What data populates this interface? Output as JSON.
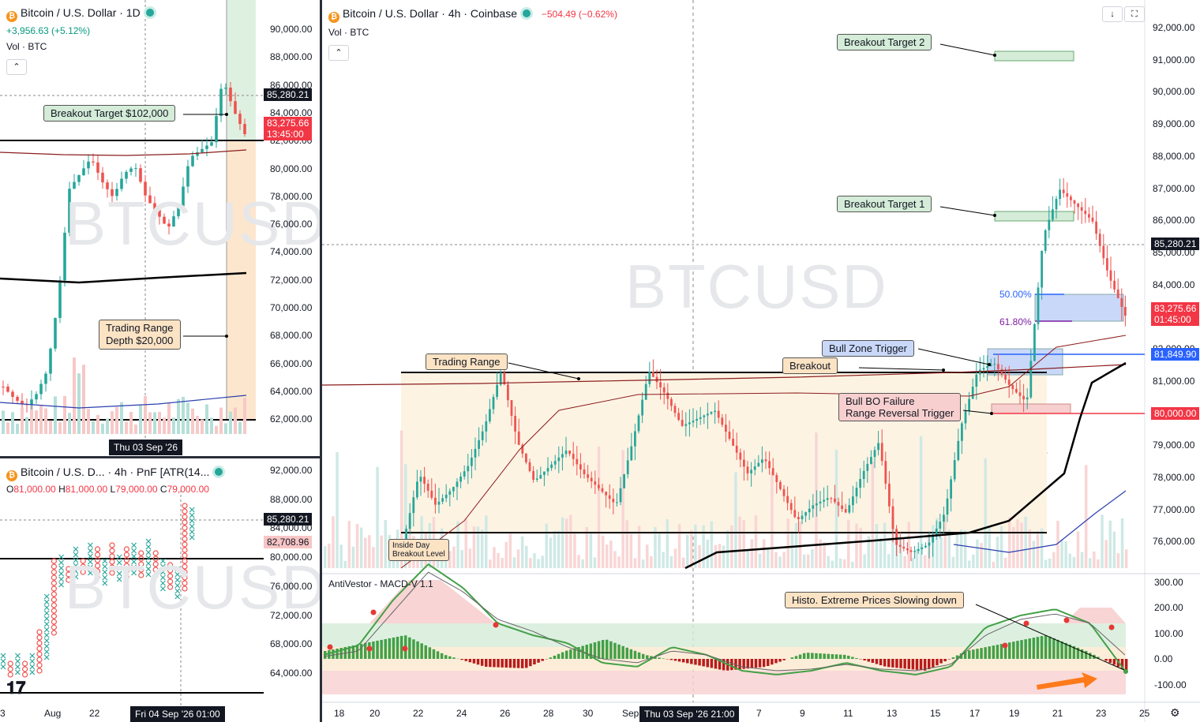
{
  "panel_daily": {
    "title": "Bitcoin / U.S. Dollar · 1D",
    "change": "+3,956.63 (+5.12%)",
    "volume_label": "Vol · BTC",
    "watermark": "BTCUSD",
    "price_axis": [
      "90,000.00",
      "88,000.00",
      "86,000.00",
      "84,000.00",
      "82,000.00",
      "80,000.00",
      "78,000.00",
      "76,000.00",
      "74,000.00",
      "72,000.00",
      "70,000.00",
      "68,000.00",
      "66,000.00",
      "64,000.00",
      "62,000.00"
    ],
    "last_price": "85,280.21",
    "current_price": "83,275.66",
    "countdown": "13:45:00",
    "crosshair_date": "Thu 03 Sep '26",
    "callout_target": "Breakout Target $102,000",
    "callout_range_line1": "Trading Range",
    "callout_range_line2": "Depth $20,000"
  },
  "panel_pnf": {
    "title": "Bitcoin / U.S. D... · 4h · PnF [ATR(14...",
    "ohlc": {
      "o_label": "O",
      "o": "81,000.00",
      "h_label": "H",
      "h": "81,000.00",
      "l_label": "L",
      "l": "79,000.00",
      "c_label": "C",
      "c": "79,000.00"
    },
    "watermark": "BTCUSD",
    "price_axis": [
      "92,000.00",
      "88,000.00",
      "84,000.00",
      "80,000.00",
      "76,000.00",
      "72,000.00",
      "68,000.00",
      "64,000.00"
    ],
    "last_price": "85,280.21",
    "current_price": "82,708.96",
    "time_axis": [
      "3",
      "Aug",
      "22"
    ],
    "crosshair_date": "Fri 04 Sep '26   01:00"
  },
  "panel_main": {
    "title": "Bitcoin / U.S. Dollar · 4h · Coinbase",
    "change": "−504.49 (−0.62%)",
    "volume_label": "Vol · BTC",
    "watermark": "BTCUSD",
    "price_axis": [
      "92,000.00",
      "91,000.00",
      "90,000.00",
      "89,000.00",
      "88,000.00",
      "87,000.00",
      "86,000.00",
      "85,000.00",
      "84,000.00",
      "83,000.00",
      "82,000.00",
      "81,000.00",
      "80,000.00",
      "79,000.00",
      "78,000.00",
      "77,000.00",
      "76,000.00"
    ],
    "last_price": "85,280.21",
    "current_price": "83,275.66",
    "countdown": "01:45:00",
    "bull_zone_price": "81,849.90",
    "bo_failure_price": "80,000.00",
    "fib_50": "50.00%",
    "fib_618": "61.80%",
    "callouts": {
      "target2": "Breakout Target 2",
      "target1": "Breakout Target 1",
      "bull_zone": "Bull Zone Trigger",
      "breakout": "Breakout",
      "trading_range": "Trading Range",
      "bo_failure_line1": "Bull BO Failure",
      "bo_failure_line2": "Range Reversal Trigger",
      "inside_day_line1": "Inside Day",
      "inside_day_line2": "Breakout Level",
      "histo": "Histo. Extreme Prices Slowing down"
    },
    "indicator_label": "AntiVestor - MACD-V 1.1",
    "indicator_axis": [
      "300.00",
      "200.00",
      "100.00",
      "0.00",
      "-100.00"
    ],
    "time_axis": [
      "18",
      "20",
      "22",
      "24",
      "26",
      "28",
      "30",
      "Sep",
      "7",
      "9",
      "11",
      "13",
      "15",
      "17",
      "19",
      "21",
      "23",
      "25"
    ],
    "crosshair_date": "Thu 03 Sep '26   21:00"
  },
  "colors": {
    "up": "#26a69a",
    "down": "#ef5350",
    "accent_red": "#f23645",
    "blue": "#2962ff",
    "callout_green": "#d4ecd8",
    "callout_orange": "#fbe3c4",
    "callout_blue": "#c9d8f8",
    "callout_red": "#f7cfcf"
  }
}
